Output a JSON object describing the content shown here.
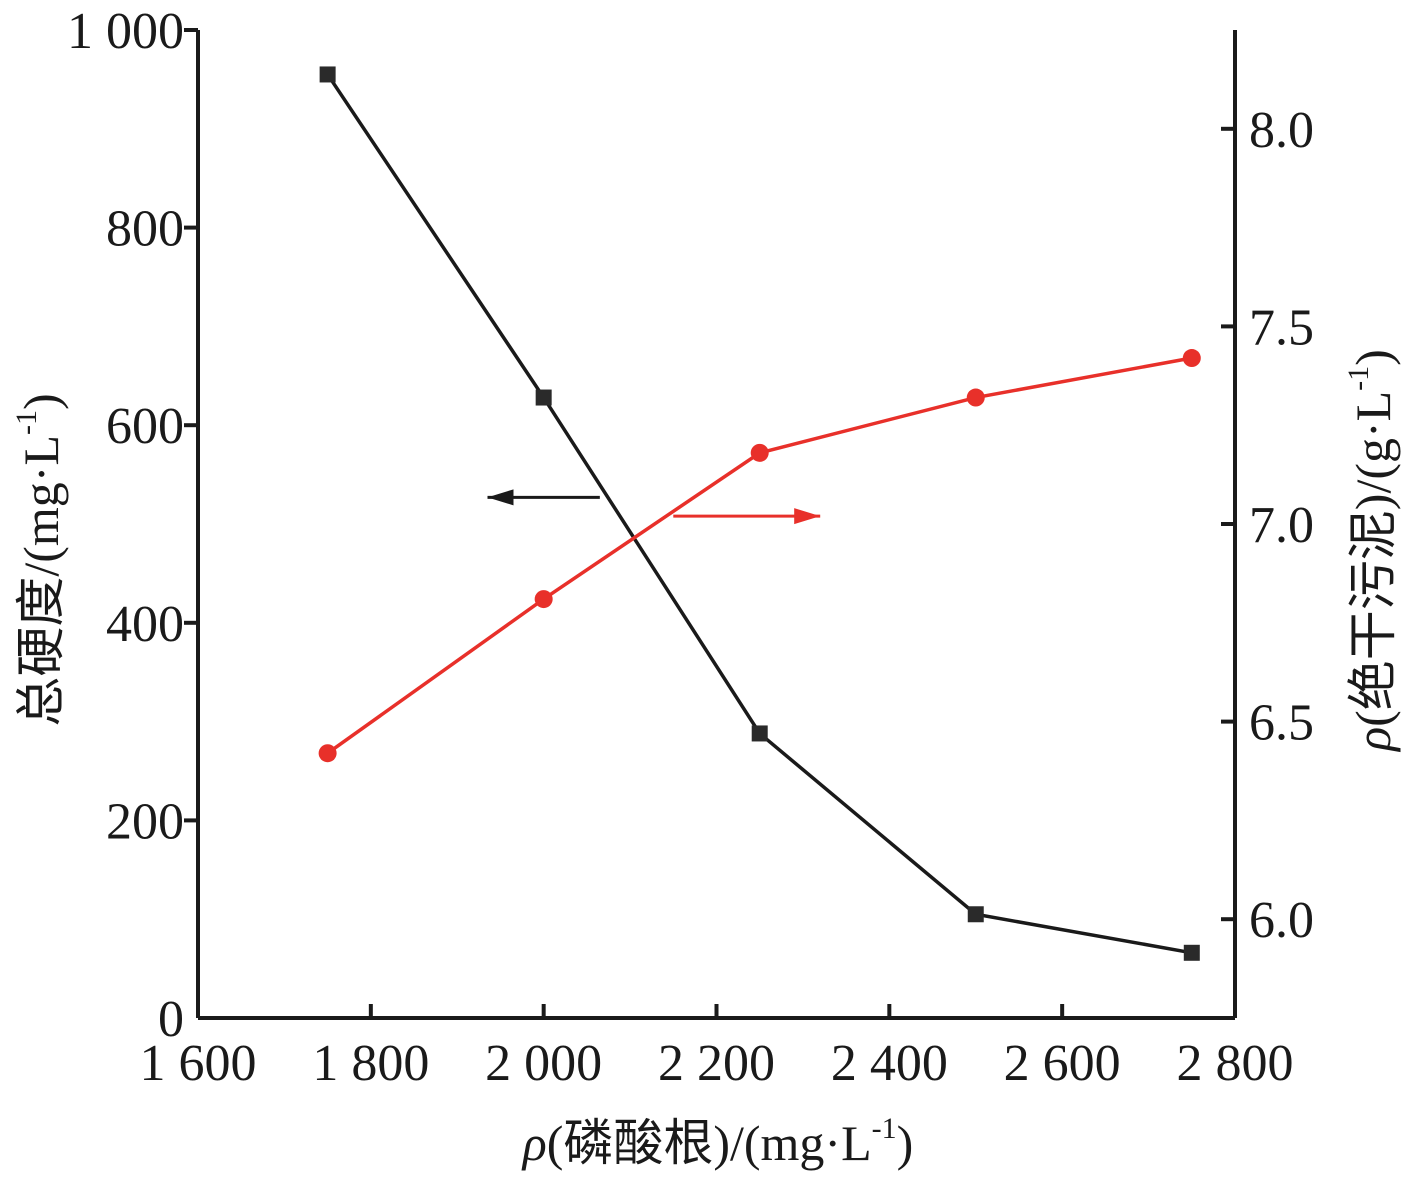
{
  "chart_data": {
    "type": "line",
    "x_axis": {
      "label": "ρ(磷酸根)/(mg·L-1)",
      "label_symbol": "ρ",
      "label_text": "(磷酸根)/(mg·L",
      "label_sup": "-1",
      "label_close": ")",
      "range": [
        1600,
        2800
      ],
      "ticks": [
        1600,
        1800,
        2000,
        2200,
        2400,
        2600,
        2800
      ],
      "tick_labels": [
        "1 600",
        "1 800",
        "2 000",
        "2 200",
        "2 400",
        "2 600",
        "2 800"
      ]
    },
    "y_left": {
      "label": "总硬度/(mg·L-1)",
      "label_text": "总硬度/(mg·L",
      "label_sup": "-1",
      "label_close": ")",
      "range": [
        0,
        1000
      ],
      "ticks": [
        0,
        200,
        400,
        600,
        800,
        1000
      ],
      "tick_labels": [
        "0",
        "200",
        "400",
        "600",
        "800",
        "1 000"
      ]
    },
    "y_right": {
      "label": "ρ(绝干污泥)/(g·L-1)",
      "label_symbol": "ρ",
      "label_text": "(绝干污泥)/(g·L",
      "label_sup": "-1",
      "label_close": ")",
      "range": [
        5.75,
        8.25
      ],
      "ticks": [
        6.0,
        6.5,
        7.0,
        7.5,
        8.0
      ],
      "tick_labels": [
        "6.0",
        "6.5",
        "7.0",
        "7.5",
        "8.0"
      ]
    },
    "series": [
      {
        "axis": "left",
        "marker": "square",
        "color": "#1a1a1a",
        "x": [
          1750,
          2000,
          2250,
          2500,
          2750
        ],
        "y": [
          955,
          628,
          288,
          105,
          66
        ]
      },
      {
        "axis": "right",
        "marker": "circle",
        "color": "#e8302a",
        "x": [
          1750,
          2000,
          2250,
          2500,
          2750
        ],
        "y": [
          6.42,
          6.81,
          7.18,
          7.32,
          7.42
        ]
      }
    ],
    "annotations": [
      {
        "type": "arrow",
        "direction": "left",
        "points_to_axis": "left",
        "color": "#1a1a1a"
      },
      {
        "type": "arrow",
        "direction": "right",
        "points_to_axis": "right",
        "color": "#e8302a"
      }
    ],
    "grid": false,
    "legend": "none"
  }
}
